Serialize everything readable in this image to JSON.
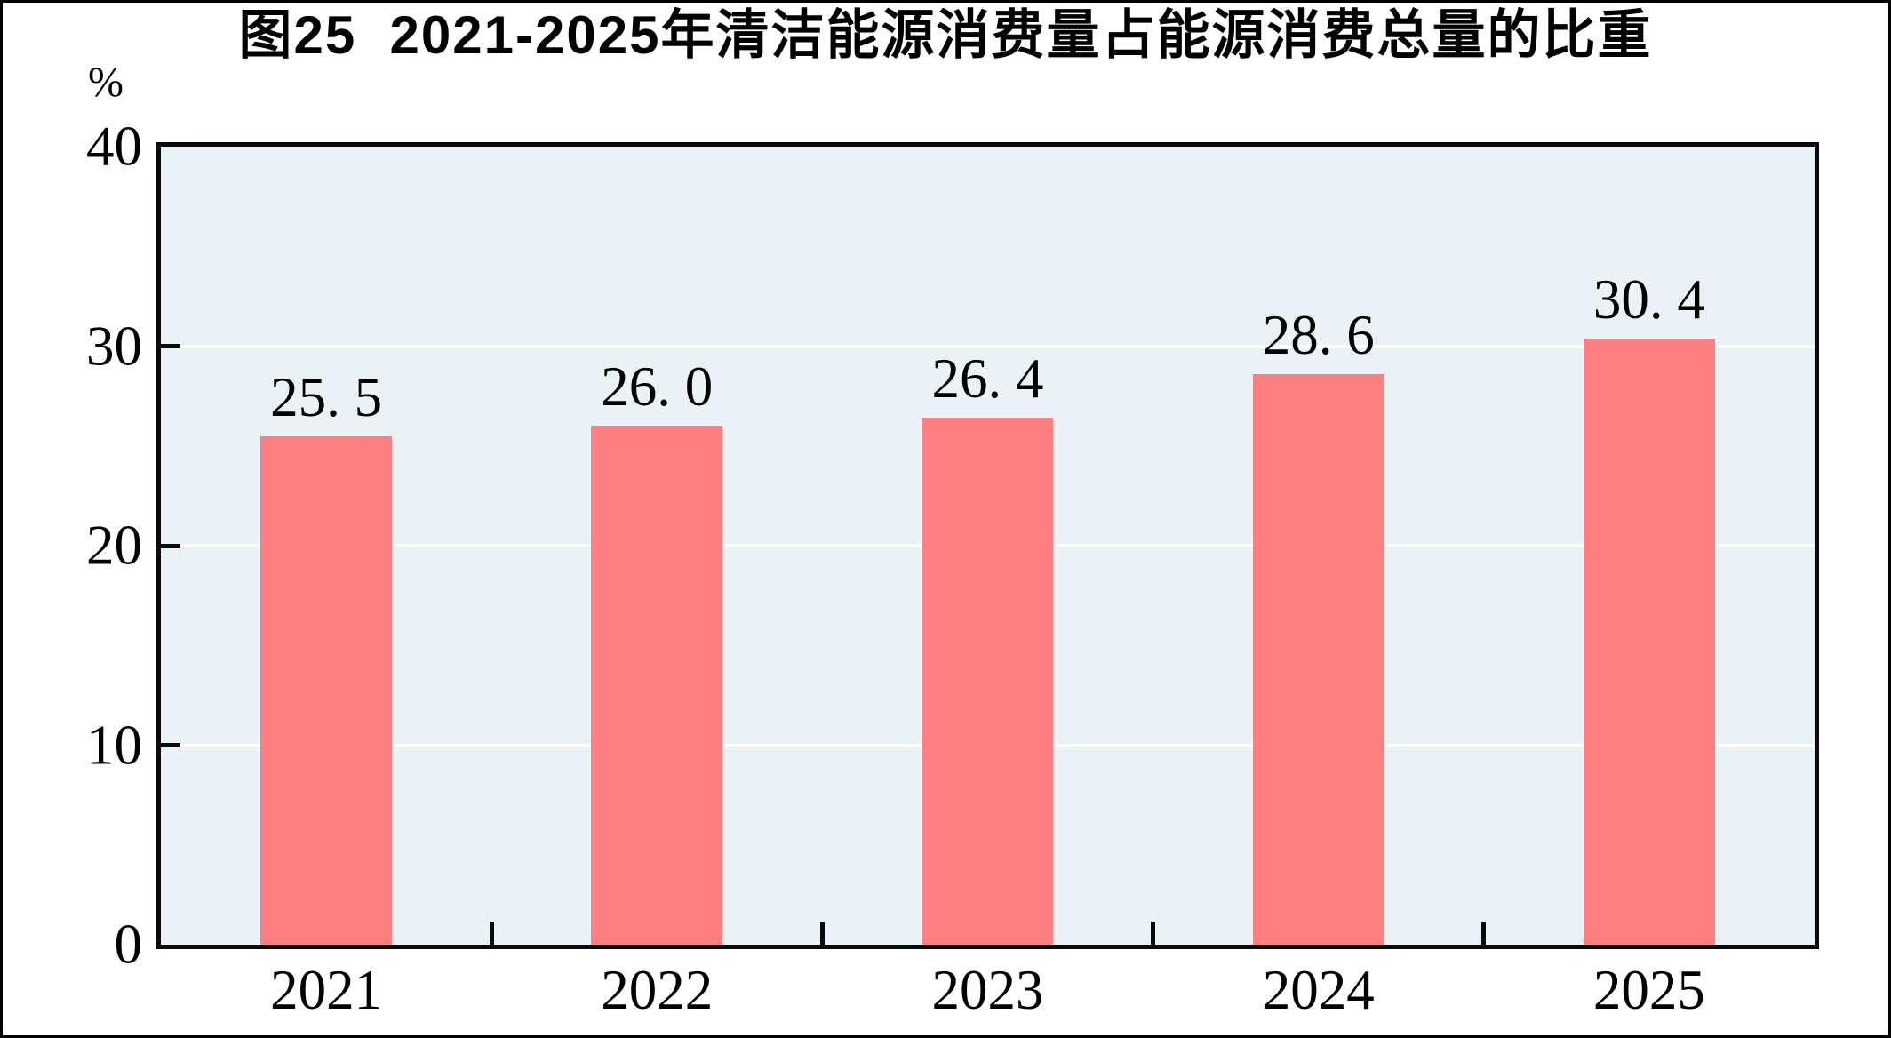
{
  "figure": {
    "number": "图25",
    "unit_label": "%"
  },
  "chart_data": {
    "type": "bar",
    "title": "图25  2021-2025年清洁能源消费量占能源消费总量的比重",
    "unit": "%",
    "categories": [
      "2021",
      "2022",
      "2023",
      "2024",
      "2025"
    ],
    "values": [
      25.5,
      26.0,
      26.4,
      28.6,
      30.4
    ],
    "value_labels": [
      "25. 5",
      "26. 0",
      "26. 4",
      "28. 6",
      "30. 4"
    ],
    "xlabel": "",
    "ylabel": "%",
    "ylim": [
      0,
      40
    ],
    "yticks": [
      0,
      10,
      20,
      30,
      40
    ],
    "grid": "horizontal-white-lines",
    "legend": "none",
    "bar_color": "#FE7F7F",
    "plot_bg_color": "#EAF2F5",
    "axis_color": "#0B0B0B",
    "gridline_color": "#FFFFFF",
    "text_color": "#000000"
  }
}
